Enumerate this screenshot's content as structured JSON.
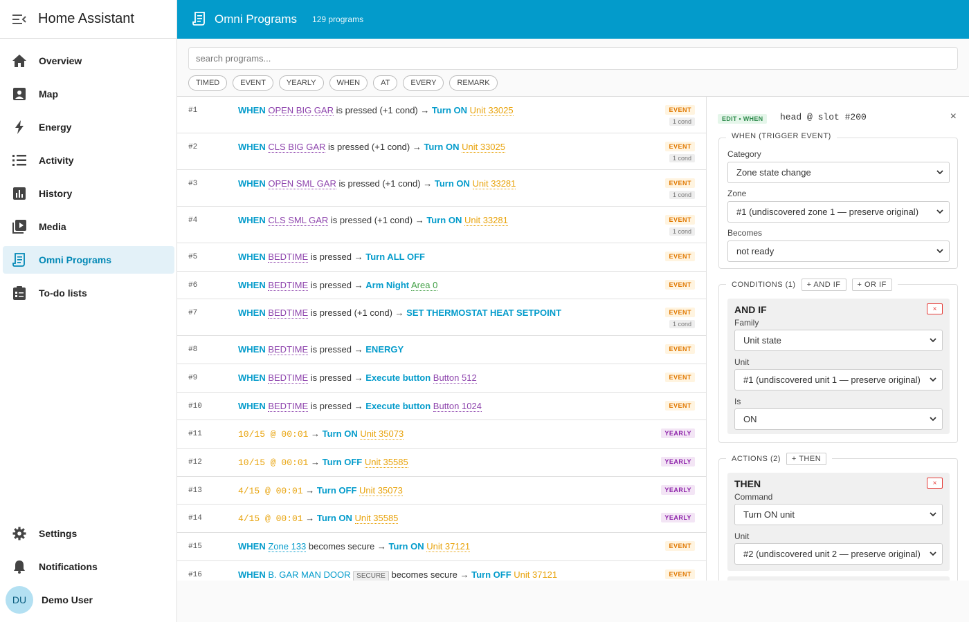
{
  "app": {
    "title": "Home Assistant"
  },
  "sidebar": {
    "items": [
      {
        "label": "Overview",
        "icon": "home-icon"
      },
      {
        "label": "Map",
        "icon": "map-icon"
      },
      {
        "label": "Energy",
        "icon": "lightning-icon"
      },
      {
        "label": "Activity",
        "icon": "list-icon"
      },
      {
        "label": "History",
        "icon": "chart-icon"
      },
      {
        "label": "Media",
        "icon": "media-icon"
      },
      {
        "label": "Omni Programs",
        "icon": "script-icon",
        "active": true
      },
      {
        "label": "To-do lists",
        "icon": "clipboard-icon"
      }
    ],
    "bottom": [
      {
        "label": "Settings",
        "icon": "gear-icon"
      },
      {
        "label": "Notifications",
        "icon": "bell-icon"
      }
    ],
    "user": {
      "initials": "DU",
      "name": "Demo User"
    }
  },
  "header": {
    "title": "Omni Programs",
    "count": "129 programs"
  },
  "search": {
    "placeholder": "search programs..."
  },
  "filters": [
    "TIMED",
    "EVENT",
    "YEARLY",
    "WHEN",
    "AT",
    "EVERY",
    "REMARK"
  ],
  "programs": [
    {
      "num": "#1",
      "badge": "EVENT",
      "cond": "1 cond"
    },
    {
      "num": "#2",
      "badge": "EVENT",
      "cond": "1 cond"
    },
    {
      "num": "#3",
      "badge": "EVENT",
      "cond": "1 cond"
    },
    {
      "num": "#4",
      "badge": "EVENT",
      "cond": "1 cond"
    },
    {
      "num": "#5",
      "badge": "EVENT"
    },
    {
      "num": "#6",
      "badge": "EVENT"
    },
    {
      "num": "#7",
      "badge": "EVENT",
      "cond": "1 cond"
    },
    {
      "num": "#8",
      "badge": "EVENT"
    },
    {
      "num": "#9",
      "badge": "EVENT"
    },
    {
      "num": "#10",
      "badge": "EVENT"
    },
    {
      "num": "#11",
      "badge": "YEARLY"
    },
    {
      "num": "#12",
      "badge": "YEARLY"
    },
    {
      "num": "#13",
      "badge": "YEARLY"
    },
    {
      "num": "#14",
      "badge": "YEARLY"
    },
    {
      "num": "#15",
      "badge": "EVENT"
    },
    {
      "num": "#16",
      "badge": "EVENT"
    }
  ],
  "prog_text": {
    "when": "WHEN",
    "is_pressed": "is pressed",
    "is_pressed_cond": "is pressed (+1 cond)",
    "becomes_secure": "becomes secure",
    "arrow": "→",
    "turn_on": "Turn ON",
    "turn_off": "Turn OFF",
    "turn_all_off": "Turn ALL OFF",
    "arm_night": "Arm Night",
    "set_thermo": "SET THERMOSTAT HEAT SETPOINT",
    "energy": "ENERGY",
    "execute_button": "Execute button",
    "open_big_gar": "OPEN BIG GAR",
    "cls_big_gar": "CLS BIG GAR",
    "open_sml_gar": "OPEN SML GAR",
    "cls_sml_gar": "CLS SML GAR",
    "bedtime": "BEDTIME",
    "zone_133": "Zone 133",
    "b_gar_man_door": "B. GAR MAN DOOR",
    "secure_tag": "SECURE",
    "unit_33025": "Unit 33025",
    "unit_33281": "Unit 33281",
    "unit_35073": "Unit 35073",
    "unit_35585": "Unit 35585",
    "unit_37121": "Unit 37121",
    "area_0": "Area 0",
    "button_512": "Button 512",
    "button_1024": "Button 1024",
    "t_1015": "10/15 @ 00:01",
    "t_415": "4/15 @ 00:01"
  },
  "editor": {
    "badge": "EDIT • WHEN",
    "title": "head @ slot #200",
    "trigger": {
      "legend": "WHEN (TRIGGER EVENT)",
      "category_label": "Category",
      "category_value": "Zone state change",
      "zone_label": "Zone",
      "zone_value": "#1 (undiscovered zone 1 — preserve original)",
      "becomes_label": "Becomes",
      "becomes_value": "not ready"
    },
    "conditions": {
      "legend": "CONDITIONS (1)",
      "add_and": "+ AND IF",
      "add_or": "+ OR IF",
      "block_title": "AND IF",
      "family_label": "Family",
      "family_value": "Unit state",
      "unit_label": "Unit",
      "unit_value": "#1 (undiscovered unit 1 — preserve original)",
      "is_label": "Is",
      "is_value": "ON"
    },
    "actions": {
      "legend": "ACTIONS (2)",
      "add_then": "+ THEN",
      "block_title": "THEN",
      "command_label": "Command",
      "command_value": "Turn ON unit",
      "unit_label": "Unit",
      "unit_value": "#2 (undiscovered unit 2 — preserve original)"
    },
    "remove": "×",
    "close": "×"
  }
}
